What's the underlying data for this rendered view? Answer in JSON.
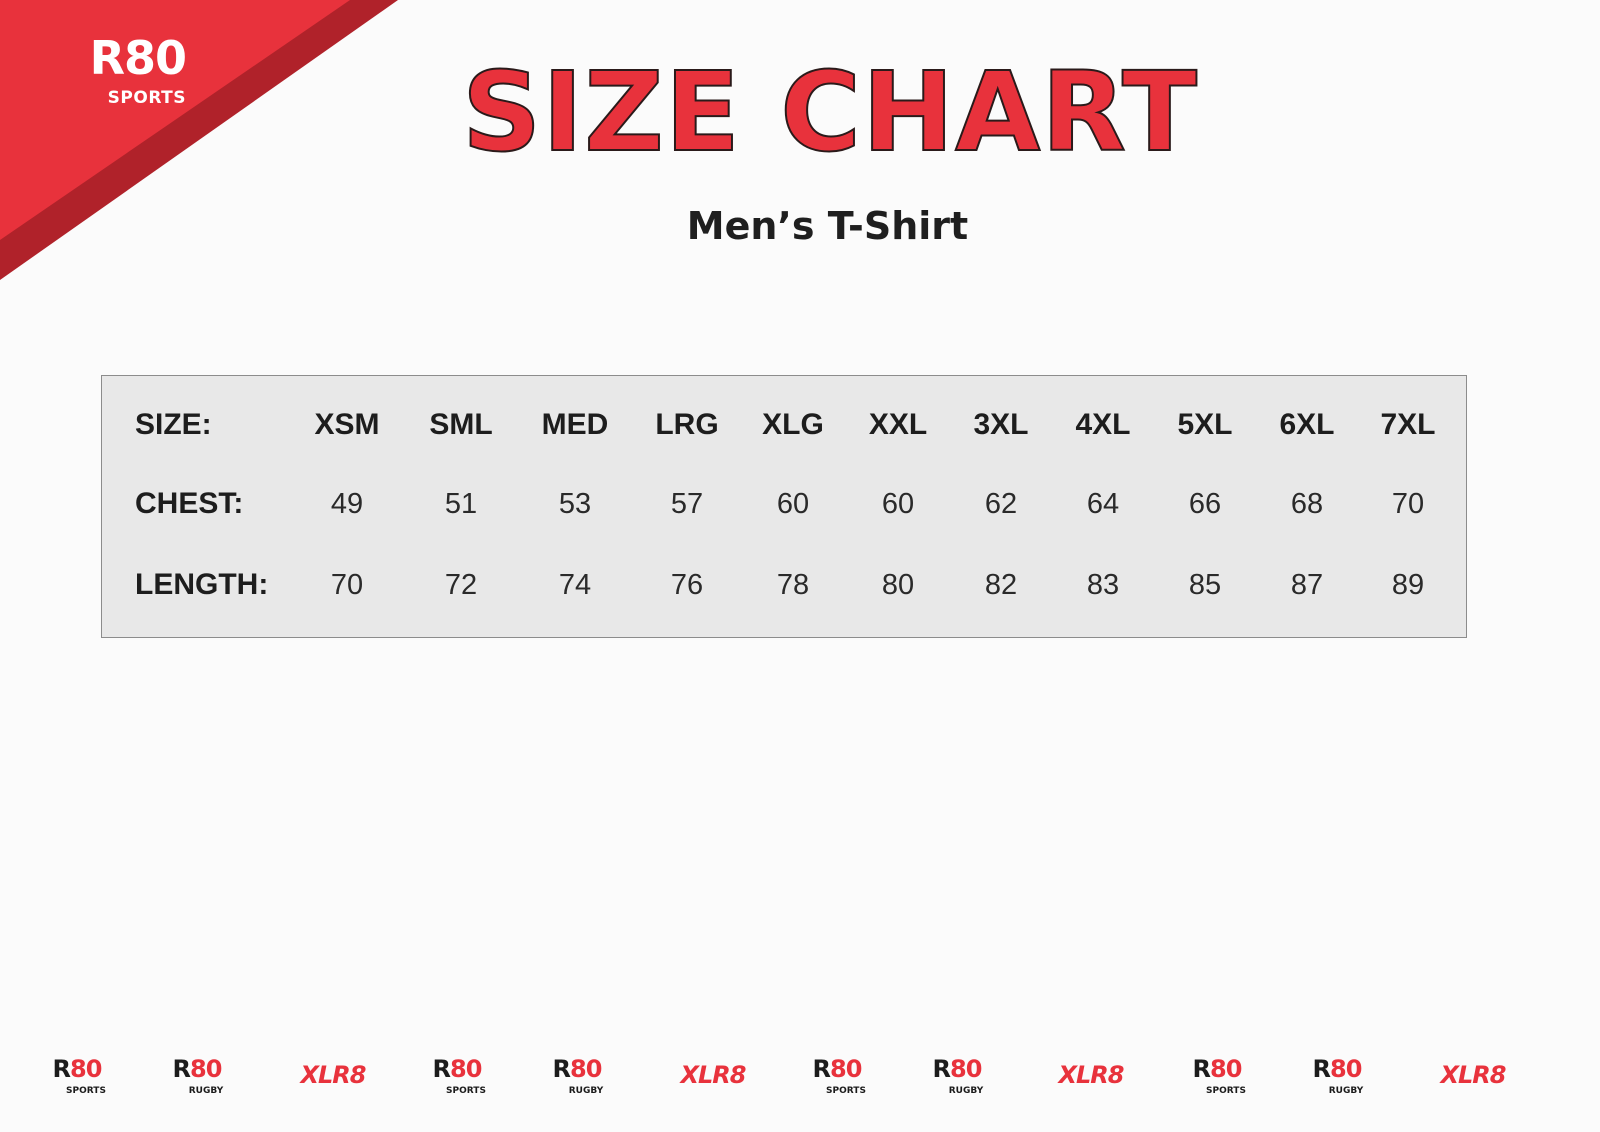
{
  "brand": {
    "logo_main": "R80",
    "logo_sub": "SPORTS",
    "accent_color": "#e8323c",
    "accent_dark": "#b0222a"
  },
  "header": {
    "title": "SIZE CHART",
    "subtitle": "Men’s T-Shirt"
  },
  "size_table": {
    "rows": [
      {
        "label": "SIZE:",
        "values": [
          "XSM",
          "SML",
          "MED",
          "LRG",
          "XLG",
          "XXL",
          "3XL",
          "4XL",
          "5XL",
          "6XL",
          "7XL"
        ]
      },
      {
        "label": "CHEST:",
        "values": [
          "49",
          "51",
          "53",
          "57",
          "60",
          "60",
          "62",
          "64",
          "66",
          "68",
          "70"
        ]
      },
      {
        "label": "LENGTH:",
        "values": [
          "70",
          "72",
          "74",
          "76",
          "78",
          "80",
          "82",
          "83",
          "85",
          "87",
          "89"
        ]
      }
    ]
  },
  "footer": {
    "logos": [
      {
        "main": "R80",
        "sub": "SPORTS"
      },
      {
        "main": "R80",
        "sub": "RUGBY"
      },
      {
        "main": "XLR8",
        "sub": ""
      },
      {
        "main": "R80",
        "sub": "SPORTS"
      },
      {
        "main": "R80",
        "sub": "RUGBY"
      },
      {
        "main": "XLR8",
        "sub": ""
      },
      {
        "main": "R80",
        "sub": "SPORTS"
      },
      {
        "main": "R80",
        "sub": "RUGBY"
      },
      {
        "main": "XLR8",
        "sub": ""
      },
      {
        "main": "R80",
        "sub": "SPORTS"
      },
      {
        "main": "R80",
        "sub": "RUGBY"
      },
      {
        "main": "XLR8",
        "sub": ""
      }
    ]
  }
}
